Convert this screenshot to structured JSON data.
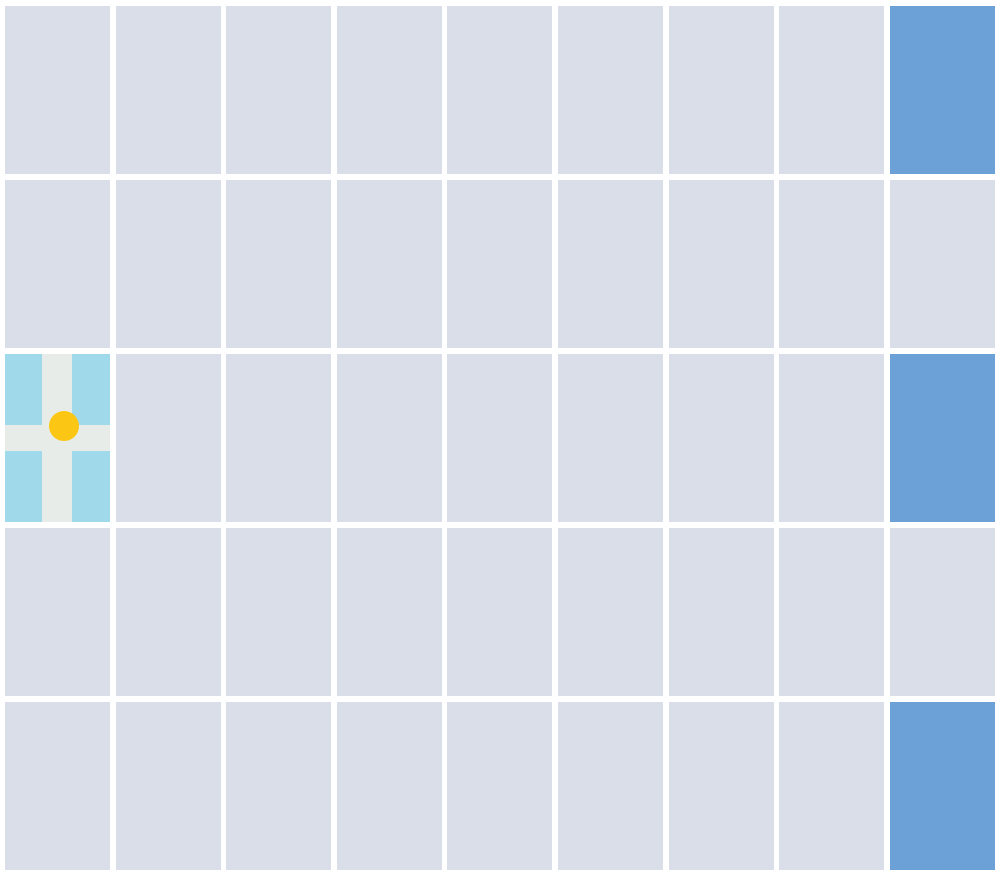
{
  "board": {
    "rows": 5,
    "cols": 9,
    "player_position": {
      "row": 3,
      "col": 1
    },
    "goal_cells": [
      {
        "row": 1,
        "col": 9
      },
      {
        "row": 3,
        "col": 9
      },
      {
        "row": 5,
        "col": 9
      }
    ]
  },
  "colors": {
    "empty_cell": "#dadee8",
    "goal_cell": "#6ba1d6",
    "player_cell": "#a0d9ea",
    "road": "#e8ece9",
    "player_token": "#fcc614",
    "gridline": "#ffffff"
  },
  "icons": {
    "player": "yellow-circle-token",
    "crossroad": "crossroad-tile"
  }
}
